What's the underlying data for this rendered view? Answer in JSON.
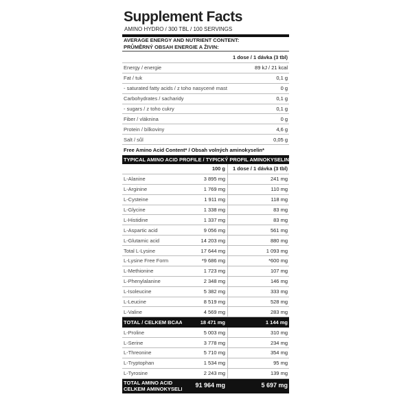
{
  "header": {
    "title": "Supplement Facts",
    "subtitle": "AMINO HYDRO / 300 TBL / 100 SERVINGS"
  },
  "nutrients": {
    "heading": [
      "AVERAGE ENERGY AND NUTRIENT CONTENT:",
      "PRŮMĚRNÝ OBSAH ENERGIE A ŽIVIN:"
    ],
    "column": "1 dose / 1 dávka (3 tbl)",
    "rows": [
      [
        "Energy / energie",
        "89 kJ / 21 kcal"
      ],
      [
        "Fat / tuk",
        "0,1 g"
      ],
      [
        "- saturated fatty acids / z toho nasycené mastné kyseliny",
        "0 g"
      ],
      [
        "Carbohydrates / sacharidy",
        "0,1 g"
      ],
      [
        "- sugars / z toho cukry",
        "0,1 g"
      ],
      [
        "Fiber / vláknina",
        "0 g"
      ],
      [
        "Protein / bílkoviny",
        "4,6 g"
      ],
      [
        "Salt / sůl",
        "0,05 g"
      ]
    ]
  },
  "free_note": "Free Amino Acid Content* / Obsah volných aminokyselin*",
  "amino": {
    "heading": "TYPICAL AMINO ACID PROFILE / TYPICKÝ PROFIL AMINOKYSELIN:",
    "columns": [
      "100 g",
      "1 dose / 1 dávka (3 tbl)"
    ],
    "rows": [
      [
        "L-Alanine",
        "3 895 mg",
        "241 mg"
      ],
      [
        "L-Arginine",
        "1 769 mg",
        "110 mg"
      ],
      [
        "L-Cysteine",
        "1 911 mg",
        "118 mg"
      ],
      [
        "L-Glycine",
        "1 338 mg",
        "83 mg"
      ],
      [
        "L-Histidine",
        "1 337 mg",
        "83 mg"
      ],
      [
        "L-Aspartic acid",
        "9 056 mg",
        "561 mg"
      ],
      [
        "L-Glutamic acid",
        "14 203 mg",
        "880 mg"
      ],
      [
        "Total L-Lysine",
        "17 644 mg",
        "1 093 mg"
      ],
      [
        "L-Lysine Free Form",
        "*9 686 mg",
        "*600 mg"
      ],
      [
        "L-Methionine",
        "1 723 mg",
        "107 mg"
      ],
      [
        "L-Phenylalanine",
        "2 348 mg",
        "146 mg"
      ],
      [
        "L-Isoleucine",
        "5 382 mg",
        "333 mg"
      ],
      [
        "L-Leucine",
        "8 519 mg",
        "528 mg"
      ],
      [
        "L-Valine",
        "4 569 mg",
        "283 mg"
      ]
    ],
    "bcaa_total": [
      "TOTAL / CELKEM BCAA",
      "18 471 mg",
      "1 144 mg"
    ],
    "rows2": [
      [
        "L-Proline",
        "5 003 mg",
        "310 mg"
      ],
      [
        "L-Serine",
        "3 778 mg",
        "234 mg"
      ],
      [
        "L-Threonine",
        "5 710 mg",
        "354 mg"
      ],
      [
        "L-Tryptophan",
        "1 534 mg",
        "95 mg"
      ],
      [
        "L-Tyrosine",
        "2 243 mg",
        "139 mg"
      ]
    ],
    "total": {
      "label": [
        "TOTAL AMINO ACID",
        "CELKEM AMINOKYSELIN"
      ],
      "values": [
        "91 964 mg",
        "5 697 mg"
      ]
    }
  }
}
